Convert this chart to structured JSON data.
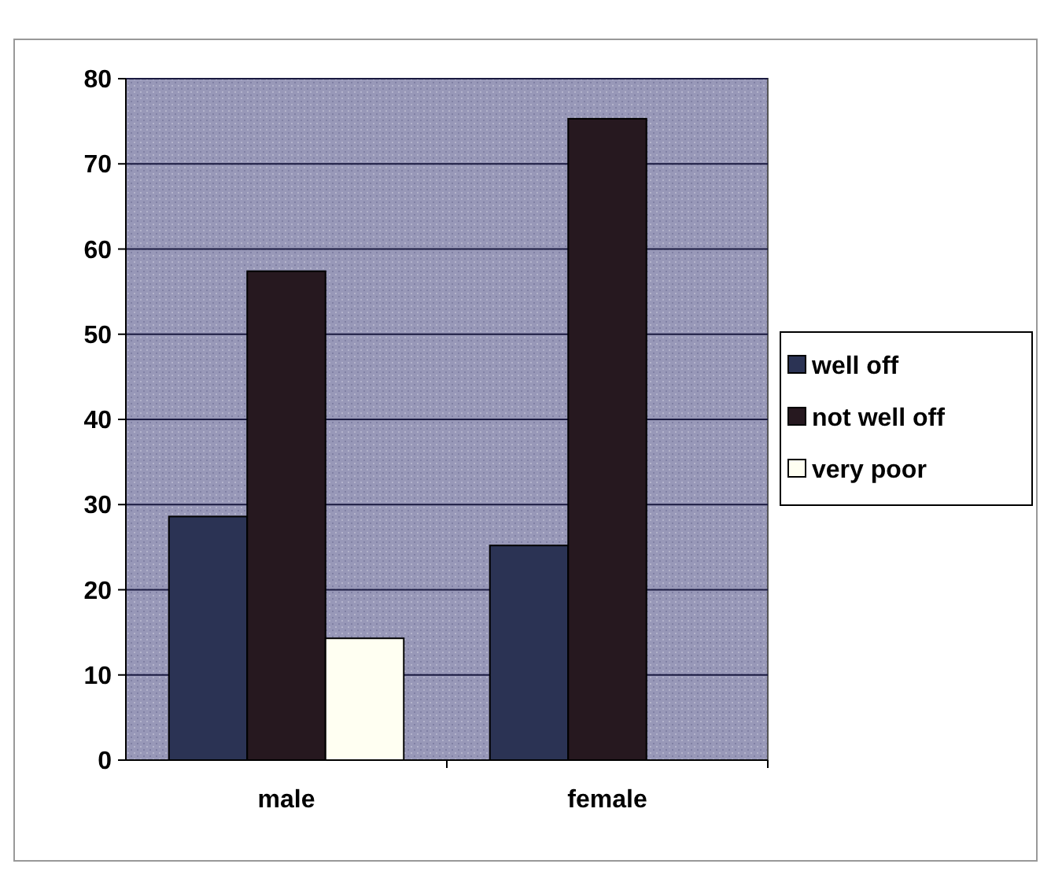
{
  "chart_data": {
    "type": "bar",
    "categories": [
      "male",
      "female"
    ],
    "series": [
      {
        "name": "well off",
        "color": "#2b3354",
        "values": [
          28.6,
          25.2
        ]
      },
      {
        "name": "not well off",
        "color": "#26181f",
        "values": [
          57.4,
          75.3
        ]
      },
      {
        "name": "very poor",
        "color": "#fffff2",
        "values": [
          14.3,
          null
        ]
      }
    ],
    "ylim": [
      0,
      80
    ],
    "yticks": [
      0,
      10,
      20,
      30,
      40,
      50,
      60,
      70,
      80
    ],
    "grid": "y",
    "legend": "right"
  }
}
